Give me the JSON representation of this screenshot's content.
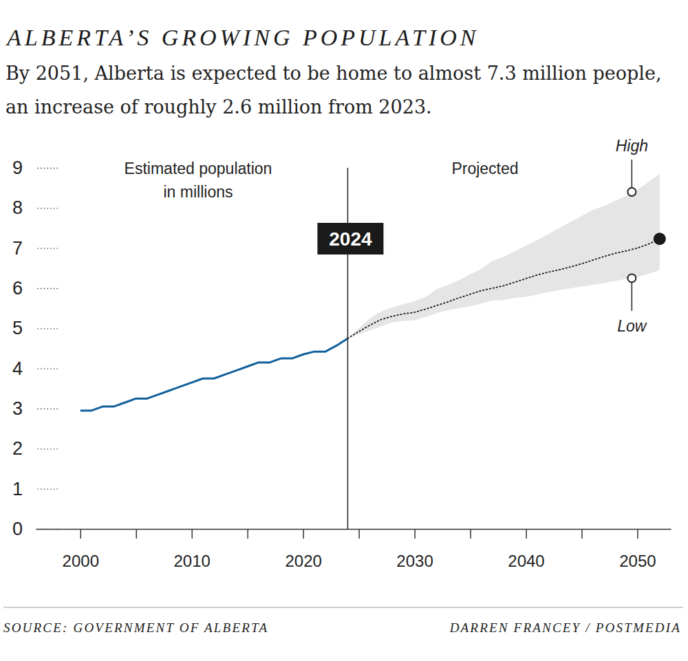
{
  "chart_data": {
    "type": "line",
    "title": "ALBERTA’S GROWING POPULATION",
    "subtitle": "By 2051, Alberta is expected to be home to almost 7.3 million people, an increase of roughly 2.6 million from 2023.",
    "source": "SOURCE: GOVERNMENT OF ALBERTA",
    "credit": "DARREN FRANCEY / POSTMEDIA",
    "x": [
      2000,
      2001,
      2002,
      2003,
      2004,
      2005,
      2006,
      2007,
      2008,
      2009,
      2010,
      2011,
      2012,
      2013,
      2014,
      2015,
      2016,
      2017,
      2018,
      2019,
      2020,
      2021,
      2022,
      2023,
      2024,
      2025,
      2026,
      2027,
      2028,
      2029,
      2030,
      2031,
      2032,
      2033,
      2034,
      2035,
      2036,
      2037,
      2038,
      2039,
      2040,
      2041,
      2042,
      2043,
      2044,
      2045,
      2046,
      2047,
      2048,
      2049,
      2050,
      2051,
      2052
    ],
    "series": [
      {
        "type": "area",
        "color": "#e5e5e5",
        "high": [
          null,
          null,
          null,
          null,
          null,
          null,
          null,
          null,
          null,
          null,
          null,
          null,
          null,
          null,
          null,
          null,
          null,
          null,
          null,
          null,
          null,
          null,
          null,
          null,
          4.75,
          5.0,
          5.25,
          5.42,
          5.52,
          5.6,
          5.68,
          5.78,
          5.98,
          6.08,
          6.2,
          6.35,
          6.48,
          6.68,
          6.78,
          6.92,
          7.06,
          7.2,
          7.35,
          7.5,
          7.65,
          7.8,
          7.95,
          8.05,
          8.18,
          8.3,
          8.45,
          8.65,
          8.85
        ],
        "low": [
          null,
          null,
          null,
          null,
          null,
          null,
          null,
          null,
          null,
          null,
          null,
          null,
          null,
          null,
          null,
          null,
          null,
          null,
          null,
          null,
          null,
          null,
          null,
          null,
          4.75,
          4.85,
          4.95,
          5.05,
          5.15,
          5.18,
          5.2,
          5.28,
          5.38,
          5.45,
          5.5,
          5.55,
          5.62,
          5.7,
          5.7,
          5.76,
          5.78,
          5.84,
          5.9,
          5.95,
          6.0,
          6.04,
          6.08,
          6.13,
          6.18,
          6.23,
          6.28,
          6.36,
          6.45
        ]
      },
      {
        "type": "line",
        "color": "#11609c",
        "line_style": "solid",
        "values": [
          2.95,
          2.95,
          3.05,
          3.05,
          3.15,
          3.25,
          3.25,
          3.35,
          3.45,
          3.55,
          3.65,
          3.75,
          3.75,
          3.85,
          3.95,
          4.05,
          4.15,
          4.15,
          4.25,
          4.25,
          4.35,
          4.42,
          4.42,
          4.57,
          4.75,
          null,
          null,
          null,
          null,
          null,
          null,
          null,
          null,
          null,
          null,
          null,
          null,
          null,
          null,
          null,
          null,
          null,
          null,
          null,
          null,
          null,
          null,
          null,
          null,
          null,
          null,
          null,
          null
        ]
      },
      {
        "type": "line",
        "color": "#1a1a1a",
        "line_style": "dotted",
        "marker": "end-dot",
        "values": [
          null,
          null,
          null,
          null,
          null,
          null,
          null,
          null,
          null,
          null,
          null,
          null,
          null,
          null,
          null,
          null,
          null,
          null,
          null,
          null,
          null,
          null,
          null,
          null,
          4.75,
          4.92,
          5.08,
          5.22,
          5.3,
          5.36,
          5.4,
          5.48,
          5.57,
          5.66,
          5.76,
          5.85,
          5.94,
          6.0,
          6.06,
          6.15,
          6.24,
          6.33,
          6.4,
          6.46,
          6.53,
          6.61,
          6.7,
          6.79,
          6.87,
          6.93,
          7.0,
          7.1,
          7.23
        ]
      }
    ],
    "xlim": [
      1996,
      2053
    ],
    "xticks": [
      2000,
      {
        "value": 2005,
        "label": null
      },
      2010,
      {
        "value": 2015,
        "label": null
      },
      2020,
      {
        "value": 2025,
        "label": null
      },
      2030,
      {
        "value": 2035,
        "label": null
      },
      2040,
      {
        "value": 2045,
        "label": null
      },
      2050
    ],
    "ylim": [
      0,
      9
    ],
    "yticks": [
      0,
      1,
      2,
      3,
      4,
      5,
      6,
      7,
      8,
      9
    ],
    "reference_line": {
      "x": 2024,
      "label": "2024"
    },
    "region_labels": [
      {
        "lines": [
          "Estimated population",
          "in millions"
        ]
      },
      {
        "lines": [
          "Projected"
        ]
      }
    ],
    "annotations": [
      {
        "text": "High",
        "x": 2049.5,
        "y": 8.4
      },
      {
        "text": "Low",
        "x": 2049.5,
        "y": 6.25
      }
    ]
  }
}
